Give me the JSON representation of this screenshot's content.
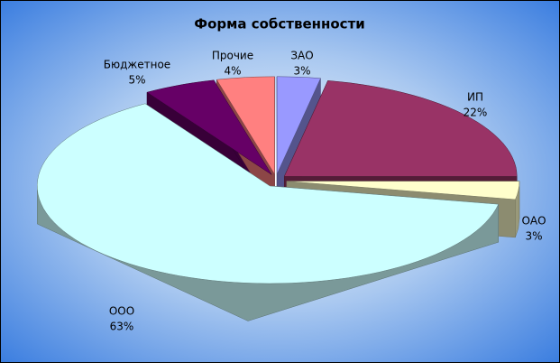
{
  "chart_data": {
    "type": "pie3d",
    "title": "Форма собственности",
    "categories": [
      "ЗАО",
      "ИП",
      "ОАО",
      "ООО",
      "Бюджетное",
      "Прочие"
    ],
    "values": [
      3,
      22,
      3,
      63,
      5,
      4
    ],
    "value_labels": [
      "3%",
      "22%",
      "3%",
      "63%",
      "5%",
      "4%"
    ],
    "colors": [
      "#9999ff",
      "#993366",
      "#ffffcc",
      "#ccffff",
      "#660066",
      "#ff8080"
    ]
  }
}
